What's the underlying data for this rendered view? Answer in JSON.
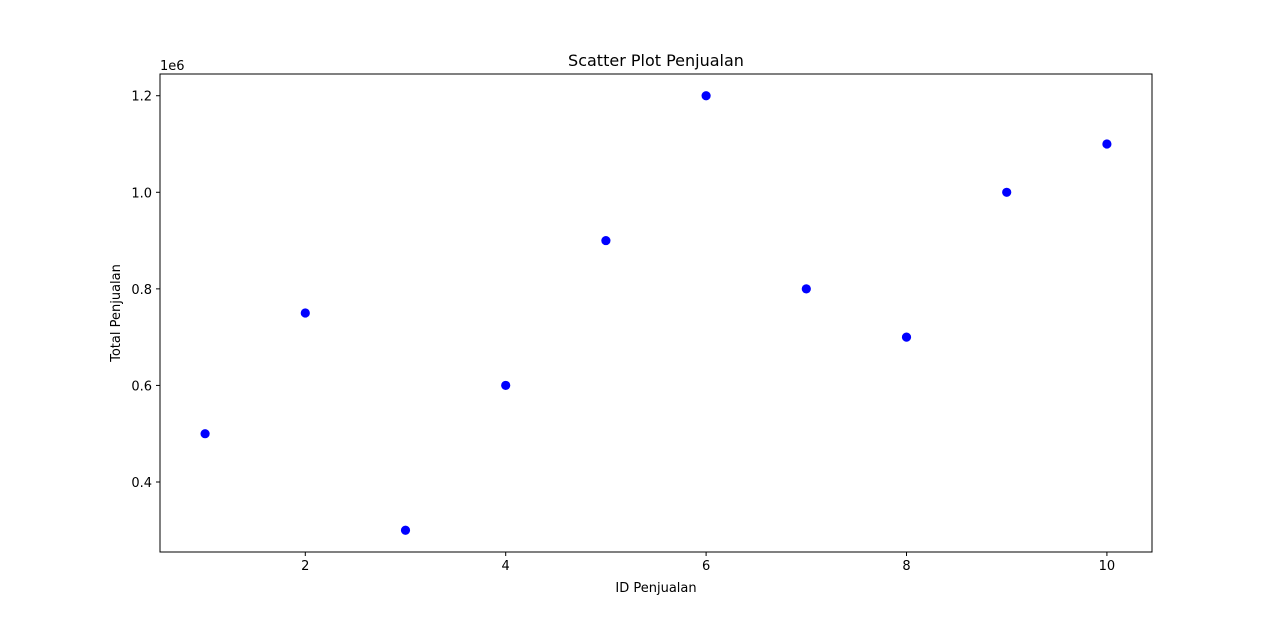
{
  "chart_data": {
    "type": "scatter",
    "title": "Scatter Plot Penjualan",
    "xlabel": "ID Penjualan",
    "ylabel": "Total Penjualan",
    "y_offset_label": "1e6",
    "y_scale_factor": 1000000,
    "xlim": [
      0.55,
      10.45
    ],
    "ylim": [
      255000,
      1245000
    ],
    "x_ticks": [
      2,
      4,
      6,
      8,
      10
    ],
    "x_tick_labels": [
      "2",
      "4",
      "6",
      "8",
      "10"
    ],
    "y_ticks": [
      400000,
      600000,
      800000,
      1000000,
      1200000
    ],
    "y_tick_labels": [
      "0.4",
      "0.6",
      "0.8",
      "1.0",
      "1.2"
    ],
    "grid": false,
    "legend": "none",
    "marker_color": "#0000ff",
    "x": [
      1,
      2,
      3,
      4,
      5,
      6,
      7,
      8,
      9,
      10
    ],
    "y": [
      500000,
      750000,
      300000,
      600000,
      900000,
      1200000,
      800000,
      700000,
      1000000,
      1100000
    ]
  }
}
